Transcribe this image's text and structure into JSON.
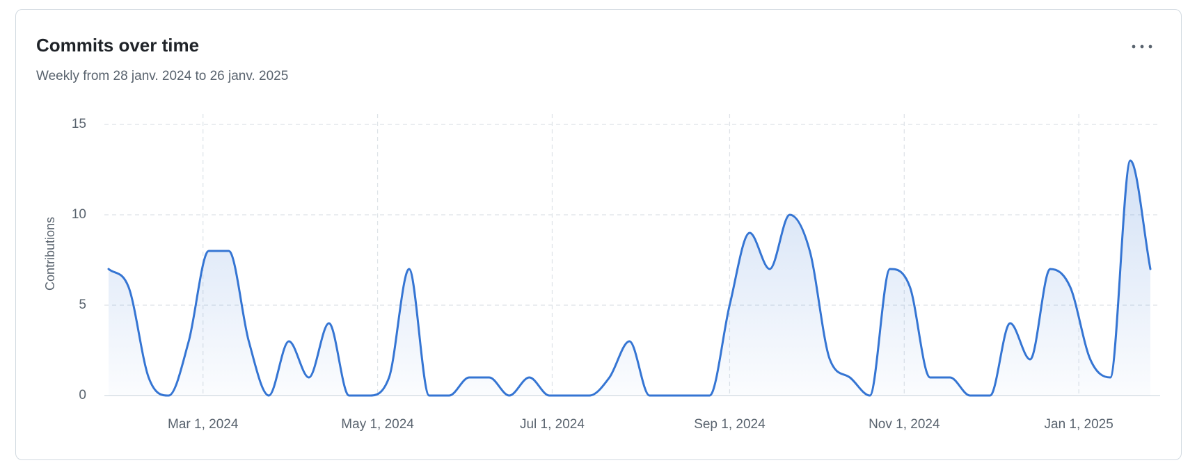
{
  "chart_data": {
    "type": "line",
    "title": "Commits over time",
    "subtitle": "Weekly from 28 janv. 2024 to 26 janv. 2025",
    "ylabel": "Contributions",
    "x": [
      "2024-01-28",
      "2024-02-04",
      "2024-02-11",
      "2024-02-18",
      "2024-02-25",
      "2024-03-03",
      "2024-03-10",
      "2024-03-17",
      "2024-03-24",
      "2024-03-31",
      "2024-04-07",
      "2024-04-14",
      "2024-04-21",
      "2024-04-28",
      "2024-05-05",
      "2024-05-12",
      "2024-05-19",
      "2024-05-26",
      "2024-06-02",
      "2024-06-09",
      "2024-06-16",
      "2024-06-23",
      "2024-06-30",
      "2024-07-07",
      "2024-07-14",
      "2024-07-21",
      "2024-07-28",
      "2024-08-04",
      "2024-08-11",
      "2024-08-18",
      "2024-08-25",
      "2024-09-01",
      "2024-09-08",
      "2024-09-15",
      "2024-09-22",
      "2024-09-29",
      "2024-10-06",
      "2024-10-13",
      "2024-10-20",
      "2024-10-27",
      "2024-11-03",
      "2024-11-10",
      "2024-11-17",
      "2024-11-24",
      "2024-12-01",
      "2024-12-08",
      "2024-12-15",
      "2024-12-22",
      "2024-12-29",
      "2025-01-05",
      "2025-01-12",
      "2025-01-19",
      "2025-01-26"
    ],
    "values": [
      7,
      6,
      1,
      0,
      3,
      8,
      8,
      3,
      0,
      3,
      1,
      4,
      0,
      0,
      1,
      7,
      0,
      0,
      1,
      1,
      0,
      1,
      0,
      0,
      0,
      1,
      3,
      0,
      0,
      0,
      0,
      5,
      9,
      7,
      10,
      8,
      2,
      1,
      0,
      7,
      6,
      1,
      1,
      0,
      0,
      4,
      2,
      7,
      6,
      2,
      1,
      13,
      7
    ],
    "color": "#3575d3",
    "xlim": [
      "2024-01-28",
      "2025-01-26"
    ],
    "xticks": [
      {
        "value": "2024-03-01",
        "label": "Mar 1, 2024"
      },
      {
        "value": "2024-05-01",
        "label": "May 1, 2024"
      },
      {
        "value": "2024-07-01",
        "label": "Jul 1, 2024"
      },
      {
        "value": "2024-09-01",
        "label": "Sep 1, 2024"
      },
      {
        "value": "2024-11-01",
        "label": "Nov 1, 2024"
      },
      {
        "value": "2025-01-01",
        "label": "Jan 1, 2025"
      }
    ],
    "ylim": [
      0,
      15
    ],
    "yticks": [
      0,
      5,
      10,
      15
    ],
    "grid": true
  }
}
